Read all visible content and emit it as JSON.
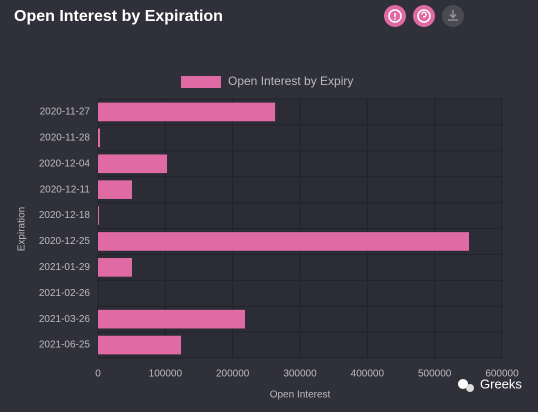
{
  "chart_data": {
    "type": "hbar",
    "title": "Open Interest by Expiration",
    "categories": [
      "2020-11-27",
      "2020-11-28",
      "2020-12-04",
      "2020-12-11",
      "2020-12-18",
      "2020-12-25",
      "2021-01-29",
      "2021-02-26",
      "2021-03-26",
      "2021-06-25"
    ],
    "series": [
      {
        "name": "Open Interest by Expiry",
        "color": "#e06aa3",
        "values": [
          263000,
          3000,
          102500,
          50500,
          1500,
          551000,
          50500,
          0,
          218300,
          123300
        ]
      }
    ],
    "xlim": [
      0,
      600000
    ],
    "xticks": [
      0,
      100000,
      200000,
      300000,
      400000,
      500000,
      600000
    ],
    "xlabel": "Open Interest",
    "ylabel": "Expiration",
    "grid": true,
    "legend": "top",
    "watermark": "Greeks"
  }
}
